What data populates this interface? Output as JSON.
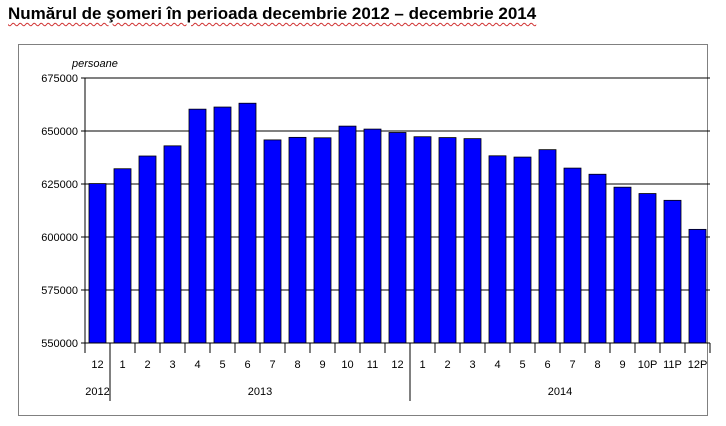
{
  "title": "Numărul de şomeri în perioada decembrie 2012 – decembrie 2014",
  "chart_data": {
    "type": "bar",
    "ylabel": "persoane",
    "ylim": [
      550000,
      675000
    ],
    "yticks": [
      550000,
      575000,
      600000,
      625000,
      650000,
      675000
    ],
    "grid": true,
    "bar_color": "#0000ff",
    "categories": [
      "12",
      "1",
      "2",
      "3",
      "4",
      "5",
      "6",
      "7",
      "8",
      "9",
      "10",
      "11",
      "12",
      "1",
      "2",
      "3",
      "4",
      "5",
      "6",
      "7",
      "8",
      "9",
      "10P",
      "11P",
      "12P"
    ],
    "values": [
      625200,
      632200,
      638200,
      643000,
      660300,
      661300,
      663100,
      645800,
      647000,
      646800,
      652300,
      650900,
      649300,
      647300,
      646900,
      646400,
      638300,
      637700,
      641200,
      632500,
      629600,
      623500,
      620500,
      617300,
      603600
    ],
    "year_groups": [
      {
        "label": "2012",
        "count": 1
      },
      {
        "label": "2013",
        "count": 12
      },
      {
        "label": "2014",
        "count": 12
      }
    ]
  }
}
